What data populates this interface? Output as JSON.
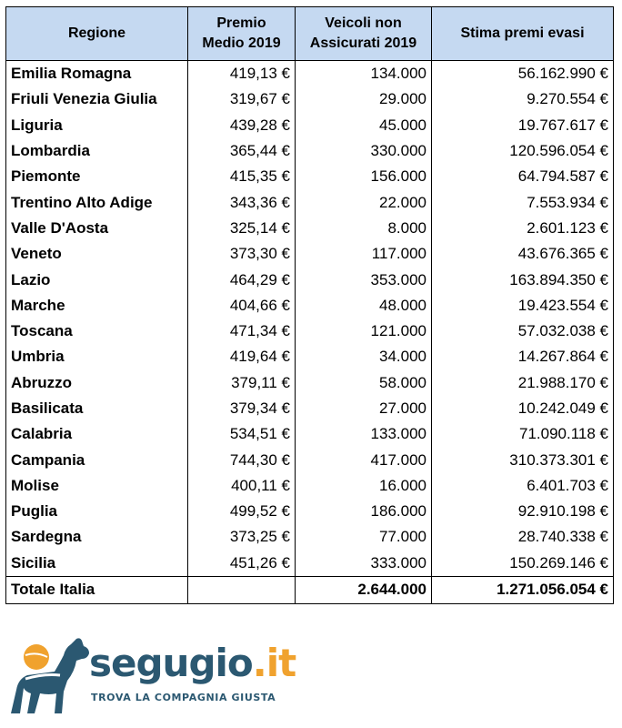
{
  "headers": {
    "region": "Regione",
    "premium_line1": "Premio",
    "premium_line2": "Medio 2019",
    "vehicles_line1": "Veicoli non",
    "vehicles_line2": "Assicurati 2019",
    "estimate": "Stima premi evasi"
  },
  "rows": [
    {
      "region": "Emilia Romagna",
      "premium": "419,13 €",
      "vehicles": "134.000",
      "estimate": "56.162.990 €"
    },
    {
      "region": "Friuli Venezia Giulia",
      "premium": "319,67 €",
      "vehicles": "29.000",
      "estimate": "9.270.554 €"
    },
    {
      "region": "Liguria",
      "premium": "439,28 €",
      "vehicles": "45.000",
      "estimate": "19.767.617 €"
    },
    {
      "region": "Lombardia",
      "premium": "365,44 €",
      "vehicles": "330.000",
      "estimate": "120.596.054 €"
    },
    {
      "region": "Piemonte",
      "premium": "415,35 €",
      "vehicles": "156.000",
      "estimate": "64.794.587 €"
    },
    {
      "region": "Trentino Alto Adige",
      "premium": "343,36 €",
      "vehicles": "22.000",
      "estimate": "7.553.934 €"
    },
    {
      "region": "Valle D'Aosta",
      "premium": "325,14 €",
      "vehicles": "8.000",
      "estimate": "2.601.123 €"
    },
    {
      "region": "Veneto",
      "premium": "373,30 €",
      "vehicles": "117.000",
      "estimate": "43.676.365 €"
    },
    {
      "region": "Lazio",
      "premium": "464,29 €",
      "vehicles": "353.000",
      "estimate": "163.894.350 €"
    },
    {
      "region": "Marche",
      "premium": "404,66 €",
      "vehicles": "48.000",
      "estimate": "19.423.554 €"
    },
    {
      "region": "Toscana",
      "premium": "471,34 €",
      "vehicles": "121.000",
      "estimate": "57.032.038 €"
    },
    {
      "region": "Umbria",
      "premium": "419,64 €",
      "vehicles": "34.000",
      "estimate": "14.267.864 €"
    },
    {
      "region": "Abruzzo",
      "premium": "379,11 €",
      "vehicles": "58.000",
      "estimate": "21.988.170 €"
    },
    {
      "region": "Basilicata",
      "premium": "379,34 €",
      "vehicles": "27.000",
      "estimate": "10.242.049 €"
    },
    {
      "region": "Calabria",
      "premium": "534,51 €",
      "vehicles": "133.000",
      "estimate": "71.090.118 €"
    },
    {
      "region": "Campania",
      "premium": "744,30 €",
      "vehicles": "417.000",
      "estimate": "310.373.301 €"
    },
    {
      "region": "Molise",
      "premium": "400,11 €",
      "vehicles": "16.000",
      "estimate": "6.401.703 €"
    },
    {
      "region": "Puglia",
      "premium": "499,52 €",
      "vehicles": "186.000",
      "estimate": "92.910.198 €"
    },
    {
      "region": "Sardegna",
      "premium": "373,25 €",
      "vehicles": "77.000",
      "estimate": "28.740.338 €"
    },
    {
      "region": "Sicilia",
      "premium": "451,26 €",
      "vehicles": "333.000",
      "estimate": "150.269.146 €"
    }
  ],
  "total": {
    "region": "Totale Italia",
    "premium": "",
    "vehicles": "2.644.000",
    "estimate": "1.271.056.054 €"
  },
  "logo": {
    "icon": "dog-with-ball-icon",
    "brand_part1": "segu",
    "brand_part2": "gio",
    "brand_part3": ".it",
    "tagline": "TROVA LA COMPAGNIA GIUSTA",
    "colors": {
      "dog": "#2b5871",
      "ball": "#f0a22e",
      "text": "#2b5871",
      "accent": "#f0a22e"
    }
  },
  "colors": {
    "header_bg": "#c5d9f1",
    "border": "#000000"
  }
}
